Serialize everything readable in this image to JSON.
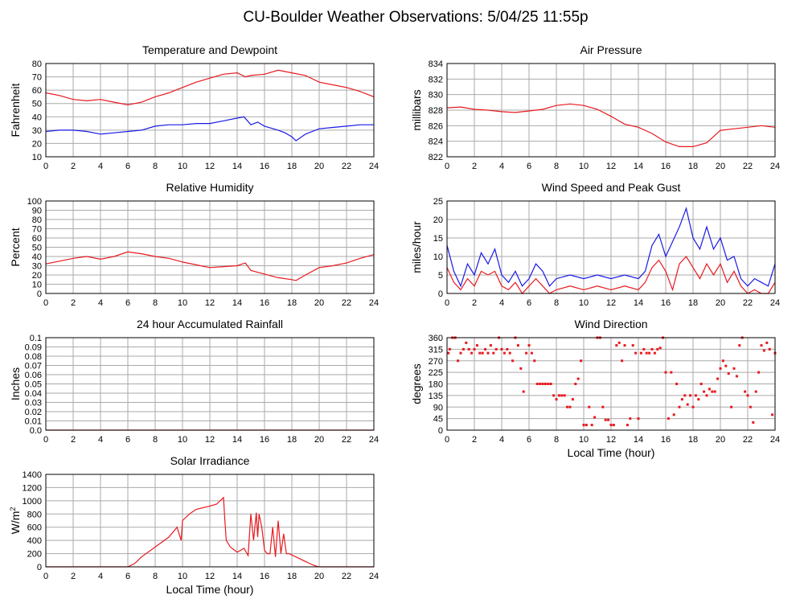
{
  "page_title": "CU-Boulder Weather Observations: 5/04/25 11:55p",
  "colors": {
    "red": "#e8191e",
    "blue": "#1a1ae6",
    "grid": "#aaaaaa",
    "axis": "#000000"
  },
  "chart_data": [
    {
      "id": "temp",
      "type": "line",
      "title": "Temperature and Dewpoint",
      "ylabel": "Fahrenheit",
      "xlabel": "",
      "xlim": [
        0,
        24
      ],
      "ylim": [
        10,
        80
      ],
      "xticks": [
        0,
        2,
        4,
        6,
        8,
        10,
        12,
        14,
        16,
        18,
        20,
        22,
        24
      ],
      "yticks": [
        10,
        20,
        30,
        40,
        50,
        60,
        70,
        80
      ],
      "grid": true,
      "series": [
        {
          "color": "red",
          "x": [
            0,
            1,
            2,
            3,
            4,
            5,
            6,
            7,
            8,
            9,
            10,
            11,
            12,
            13,
            14,
            14.6,
            15,
            16,
            17,
            18,
            19,
            20,
            21,
            22,
            23,
            24
          ],
          "y": [
            58,
            56,
            53,
            52,
            53,
            51,
            49,
            51,
            55,
            58,
            62,
            66,
            69,
            72,
            73,
            70,
            71,
            72,
            75,
            73,
            71,
            66,
            64,
            62,
            59,
            55
          ]
        },
        {
          "color": "blue",
          "x": [
            0,
            1,
            2,
            3,
            4,
            5,
            6,
            7,
            8,
            9,
            10,
            11,
            12,
            13,
            14,
            14.5,
            15,
            15.5,
            16,
            17,
            17.5,
            18,
            18.3,
            19,
            20,
            21,
            22,
            23,
            24
          ],
          "y": [
            29,
            30,
            30,
            29,
            27,
            28,
            29,
            30,
            33,
            34,
            34,
            35,
            35,
            37,
            39,
            40,
            34,
            36,
            33,
            30,
            28,
            25,
            22,
            27,
            31,
            32,
            33,
            34,
            34
          ]
        }
      ]
    },
    {
      "id": "pressure",
      "type": "line",
      "title": "Air Pressure",
      "ylabel": "millibars",
      "xlabel": "",
      "xlim": [
        0,
        24
      ],
      "ylim": [
        822,
        834
      ],
      "xticks": [
        0,
        2,
        4,
        6,
        8,
        10,
        12,
        14,
        16,
        18,
        20,
        22,
        24
      ],
      "yticks": [
        822,
        824,
        826,
        828,
        830,
        832,
        834
      ],
      "grid": true,
      "series": [
        {
          "color": "red",
          "x": [
            0,
            1,
            2,
            3,
            4,
            5,
            6,
            7,
            8,
            9,
            10,
            11,
            12,
            13,
            14,
            15,
            16,
            17,
            18,
            19,
            20,
            21,
            22,
            23,
            24
          ],
          "y": [
            828.3,
            828.4,
            828.1,
            828.0,
            827.8,
            827.7,
            827.9,
            828.1,
            828.6,
            828.8,
            828.6,
            828.1,
            827.2,
            826.2,
            825.8,
            825.0,
            823.9,
            823.3,
            823.3,
            823.8,
            825.4,
            825.6,
            825.8,
            826.0,
            825.8
          ]
        }
      ]
    },
    {
      "id": "humidity",
      "type": "line",
      "title": "Relative Humidity",
      "ylabel": "Percent",
      "xlabel": "",
      "xlim": [
        0,
        24
      ],
      "ylim": [
        0,
        100
      ],
      "xticks": [
        0,
        2,
        4,
        6,
        8,
        10,
        12,
        14,
        16,
        18,
        20,
        22,
        24
      ],
      "yticks": [
        0,
        10,
        20,
        30,
        40,
        50,
        60,
        70,
        80,
        90,
        100
      ],
      "grid": true,
      "series": [
        {
          "color": "red",
          "x": [
            0,
            1,
            2,
            3,
            4,
            5,
            6,
            7,
            8,
            9,
            10,
            11,
            12,
            13,
            14,
            14.6,
            15,
            16,
            17,
            18,
            18.3,
            19,
            20,
            21,
            22,
            23,
            24
          ],
          "y": [
            32,
            35,
            38,
            40,
            37,
            40,
            45,
            43,
            40,
            38,
            34,
            31,
            28,
            29,
            30,
            33,
            25,
            21,
            17,
            15,
            14,
            20,
            28,
            30,
            33,
            38,
            42
          ]
        }
      ]
    },
    {
      "id": "wind",
      "type": "line",
      "title": "Wind Speed and Peak Gust",
      "ylabel": "miles/hour",
      "xlabel": "",
      "xlim": [
        0,
        24
      ],
      "ylim": [
        0,
        25
      ],
      "xticks": [
        0,
        2,
        4,
        6,
        8,
        10,
        12,
        14,
        16,
        18,
        20,
        22,
        24
      ],
      "yticks": [
        0,
        5,
        10,
        15,
        20,
        25
      ],
      "grid": true,
      "series": [
        {
          "color": "blue",
          "x": [
            0,
            0.5,
            1,
            1.5,
            2,
            2.5,
            3,
            3.5,
            4,
            4.5,
            5,
            5.5,
            6,
            6.5,
            7,
            7.5,
            8,
            9,
            10,
            11,
            12,
            13,
            14,
            14.5,
            15,
            15.5,
            16,
            16.5,
            17,
            17.5,
            18,
            18.5,
            19,
            19.5,
            20,
            20.5,
            21,
            21.5,
            22,
            22.5,
            23,
            23.5,
            24
          ],
          "y": [
            13,
            6,
            2,
            8,
            5,
            11,
            8,
            12,
            5,
            3,
            6,
            2,
            4,
            8,
            6,
            2,
            4,
            5,
            4,
            5,
            4,
            5,
            4,
            6,
            13,
            16,
            10,
            14,
            18,
            23,
            15,
            12,
            18,
            12,
            15,
            9,
            10,
            4,
            2,
            4,
            3,
            2,
            8
          ]
        },
        {
          "color": "red",
          "x": [
            0,
            0.5,
            1,
            1.5,
            2,
            2.5,
            3,
            3.5,
            4,
            4.5,
            5,
            5.5,
            6,
            6.5,
            7,
            7.5,
            8,
            9,
            10,
            11,
            12,
            13,
            14,
            14.5,
            15,
            15.5,
            16,
            16.5,
            17,
            17.5,
            18,
            18.5,
            19,
            19.5,
            20,
            20.5,
            21,
            21.5,
            22,
            22.5,
            23,
            23.5,
            24
          ],
          "y": [
            7,
            3,
            1,
            4,
            2,
            6,
            5,
            6,
            2,
            1,
            3,
            0,
            2,
            4,
            2,
            0,
            1,
            2,
            1,
            2,
            1,
            2,
            1,
            3,
            7,
            9,
            6,
            1,
            8,
            10,
            7,
            4,
            8,
            5,
            8,
            3,
            6,
            2,
            0,
            1,
            0,
            0,
            3
          ]
        }
      ]
    },
    {
      "id": "rain",
      "type": "line",
      "title": "24 hour Accumulated Rainfall",
      "ylabel": "Inches",
      "xlabel": "",
      "xlim": [
        0,
        24
      ],
      "ylim": [
        0,
        0.1
      ],
      "xticks": [
        0,
        2,
        4,
        6,
        8,
        10,
        12,
        14,
        16,
        18,
        20,
        22,
        24
      ],
      "yticks": [
        0.0,
        0.01,
        0.02,
        0.03,
        0.04,
        0.05,
        0.06,
        0.07,
        0.08,
        0.09,
        0.1
      ],
      "ytick_labels": [
        "0.0",
        "0.01",
        "0.02",
        "0.03",
        "0.04",
        "0.05",
        "0.06",
        "0.07",
        "0.08",
        "0.09",
        "0.1"
      ],
      "grid": true,
      "series": [
        {
          "color": "red",
          "x": [
            0,
            24
          ],
          "y": [
            0,
            0
          ]
        }
      ]
    },
    {
      "id": "winddir",
      "type": "scatter",
      "title": "Wind Direction",
      "ylabel": "degrees",
      "xlabel": "Local Time (hour)",
      "xlim": [
        0,
        24
      ],
      "ylim": [
        0,
        360
      ],
      "xticks": [
        0,
        2,
        4,
        6,
        8,
        10,
        12,
        14,
        16,
        18,
        20,
        22,
        24
      ],
      "yticks": [
        0,
        45,
        90,
        135,
        180,
        225,
        270,
        315,
        360
      ],
      "grid": true,
      "series": [
        {
          "color": "red",
          "x": [
            0.1,
            0.2,
            0.4,
            0.6,
            0.8,
            1.0,
            1.2,
            1.4,
            1.6,
            1.8,
            2.0,
            2.2,
            2.4,
            2.6,
            2.8,
            3.0,
            3.2,
            3.4,
            3.6,
            3.8,
            4.0,
            4.2,
            4.4,
            4.6,
            4.8,
            5.0,
            5.2,
            5.4,
            5.6,
            5.8,
            6.0,
            6.2,
            6.4,
            6.6,
            6.8,
            7.0,
            7.2,
            7.4,
            7.6,
            7.8,
            8.0,
            8.2,
            8.4,
            8.6,
            8.8,
            9.0,
            9.2,
            9.4,
            9.6,
            9.8,
            10.0,
            10.2,
            10.4,
            10.6,
            10.8,
            11.0,
            11.2,
            11.4,
            11.6,
            11.8,
            12.0,
            12.2,
            12.4,
            12.6,
            12.8,
            13.0,
            13.2,
            13.4,
            13.6,
            13.8,
            14.0,
            14.2,
            14.4,
            14.6,
            14.8,
            15.0,
            15.2,
            15.4,
            15.6,
            15.8,
            16.0,
            16.2,
            16.4,
            16.6,
            16.8,
            17.0,
            17.2,
            17.4,
            17.6,
            17.8,
            18.0,
            18.2,
            18.4,
            18.6,
            18.8,
            19.0,
            19.2,
            19.4,
            19.6,
            19.8,
            20.0,
            20.2,
            20.4,
            20.6,
            20.8,
            21.0,
            21.2,
            21.4,
            21.6,
            21.8,
            22.0,
            22.2,
            22.4,
            22.6,
            22.8,
            23.0,
            23.2,
            23.4,
            23.6,
            23.8,
            24.0
          ],
          "y": [
            300,
            315,
            360,
            360,
            270,
            300,
            315,
            340,
            315,
            300,
            315,
            330,
            300,
            300,
            315,
            300,
            330,
            300,
            315,
            360,
            315,
            300,
            315,
            300,
            270,
            360,
            330,
            240,
            150,
            300,
            330,
            300,
            270,
            180,
            180,
            180,
            180,
            180,
            180,
            135,
            120,
            135,
            135,
            135,
            90,
            90,
            120,
            180,
            200,
            270,
            20,
            20,
            90,
            20,
            50,
            360,
            360,
            90,
            40,
            40,
            20,
            20,
            330,
            340,
            270,
            330,
            20,
            45,
            330,
            300,
            45,
            300,
            315,
            300,
            300,
            315,
            300,
            315,
            320,
            360,
            225,
            45,
            225,
            60,
            180,
            90,
            120,
            135,
            100,
            135,
            90,
            135,
            120,
            180,
            150,
            135,
            160,
            150,
            150,
            200,
            240,
            270,
            250,
            220,
            90,
            240,
            210,
            330,
            360,
            150,
            135,
            90,
            30,
            150,
            225,
            330,
            310,
            340,
            315,
            60,
            300
          ]
        }
      ]
    },
    {
      "id": "solar",
      "type": "line",
      "title": "Solar Irradiance",
      "ylabel": "W/m2",
      "ylabel_base": "W/m",
      "ylabel_sup": "2",
      "xlabel": "Local Time (hour)",
      "xlim": [
        0,
        24
      ],
      "ylim": [
        0,
        1400
      ],
      "xticks": [
        0,
        2,
        4,
        6,
        8,
        10,
        12,
        14,
        16,
        18,
        20,
        22,
        24
      ],
      "yticks": [
        0,
        200,
        400,
        600,
        800,
        1000,
        1200,
        1400
      ],
      "grid": true,
      "series": [
        {
          "color": "red",
          "x": [
            0,
            6.0,
            6.5,
            7,
            8,
            9,
            9.6,
            9.9,
            10.0,
            10.5,
            11,
            12,
            12.5,
            13.0,
            13.1,
            13.2,
            13.5,
            14.0,
            14.5,
            14.8,
            15.0,
            15.2,
            15.4,
            15.5,
            15.6,
            15.8,
            16.0,
            16.2,
            16.4,
            16.6,
            16.8,
            17.0,
            17.2,
            17.4,
            17.6,
            17.8,
            18.0,
            18.5,
            19.0,
            19.5,
            19.8,
            20.0,
            24
          ],
          "y": [
            0,
            0,
            50,
            150,
            300,
            450,
            600,
            400,
            700,
            800,
            870,
            920,
            950,
            1050,
            700,
            400,
            300,
            220,
            280,
            170,
            800,
            400,
            820,
            450,
            800,
            600,
            250,
            200,
            200,
            600,
            150,
            700,
            200,
            500,
            200,
            200,
            180,
            130,
            80,
            30,
            10,
            0,
            0
          ]
        }
      ]
    }
  ]
}
